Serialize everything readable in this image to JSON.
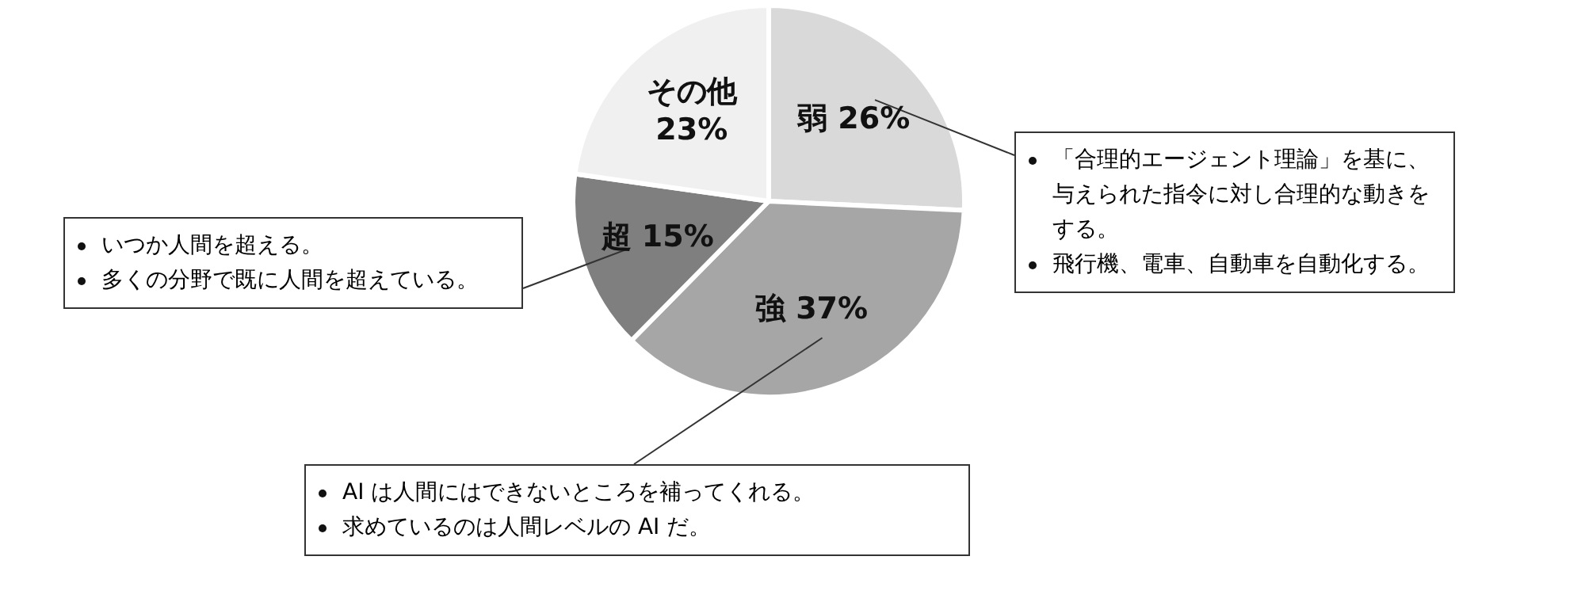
{
  "chart_data": {
    "type": "pie",
    "categories": [
      "弱",
      "強",
      "超",
      "その他"
    ],
    "values": [
      26,
      37,
      15,
      23
    ],
    "value_labels": [
      "26%",
      "37%",
      "15%",
      "23%"
    ],
    "colors": [
      "#d9d9d9",
      "#a6a6a6",
      "#7f7f7f",
      "#f0f0f0"
    ],
    "legend": false,
    "annotations": [
      "「合理的エージェント理論」を基に、与えられた指令に対し合理的な動きをする。",
      "飛行機、電車、自動車を自動化する。",
      "いつか人間を超える。",
      "多くの分野で既に人間を超えている。",
      "AI は人間にはできないところを補ってくれる。",
      "求めているのは人間レベルの AI だ。"
    ]
  }
}
